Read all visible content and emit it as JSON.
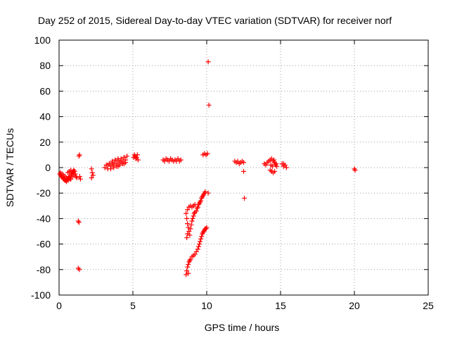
{
  "chart_data": {
    "type": "scatter",
    "title": "Day 252 of 2015, Sidereal Day-to-day VTEC variation (SDTVAR) for receiver norf",
    "xlabel": "GPS time / hours",
    "ylabel": "SDTVAR / TECUs",
    "xlim": [
      0,
      25
    ],
    "ylim": [
      -100,
      100
    ],
    "grid": true,
    "marker": "+",
    "color": "#ff0000",
    "x_ticks": [
      0,
      5,
      10,
      15,
      20,
      25
    ],
    "x_tick_labels": [
      "0",
      "5",
      "10",
      "15",
      "20",
      "25"
    ],
    "y_ticks": [
      -100,
      -80,
      -60,
      -40,
      -20,
      0,
      20,
      40,
      60,
      80,
      100
    ],
    "y_tick_labels": [
      "-100",
      "-80",
      "-60",
      "-40",
      "-20",
      "0",
      "20",
      "40",
      "60",
      "80",
      "100"
    ],
    "series": [
      {
        "name": "SDTVAR",
        "points": [
          [
            0.05,
            -5
          ],
          [
            0.1,
            -6
          ],
          [
            0.15,
            -7
          ],
          [
            0.2,
            -5
          ],
          [
            0.25,
            -8
          ],
          [
            0.3,
            -6
          ],
          [
            0.35,
            -9
          ],
          [
            0.4,
            -7
          ],
          [
            0.45,
            -10
          ],
          [
            0.5,
            -8
          ],
          [
            0.55,
            -9
          ],
          [
            0.6,
            -10
          ],
          [
            0.65,
            -8
          ],
          [
            0.7,
            -7
          ],
          [
            0.75,
            -9
          ],
          [
            0.8,
            -6
          ],
          [
            0.85,
            -5
          ],
          [
            0.9,
            -4
          ],
          [
            0.95,
            -3
          ],
          [
            1.0,
            -2
          ],
          [
            1.05,
            -3
          ],
          [
            1.1,
            -5
          ],
          [
            1.15,
            -7
          ],
          [
            1.2,
            -8
          ],
          [
            0.3,
            -9
          ],
          [
            0.4,
            -10
          ],
          [
            0.5,
            -11
          ],
          [
            0.6,
            -9
          ],
          [
            0.7,
            -8
          ],
          [
            0.8,
            -9
          ],
          [
            0.9,
            -7
          ],
          [
            1.0,
            -6
          ],
          [
            0.2,
            -7
          ],
          [
            0.1,
            -4
          ],
          [
            0.6,
            -4
          ],
          [
            0.7,
            -3
          ],
          [
            0.8,
            -2
          ],
          [
            1.35,
            9
          ],
          [
            1.38,
            10
          ],
          [
            1.4,
            -7
          ],
          [
            1.45,
            -9
          ],
          [
            1.3,
            -42
          ],
          [
            1.35,
            -43
          ],
          [
            1.3,
            -79
          ],
          [
            1.38,
            -80
          ],
          [
            2.2,
            -1
          ],
          [
            2.25,
            -4
          ],
          [
            2.3,
            -6
          ],
          [
            2.2,
            -8
          ],
          [
            3.1,
            0
          ],
          [
            3.2,
            2
          ],
          [
            3.3,
            -1
          ],
          [
            3.4,
            3
          ],
          [
            3.5,
            1
          ],
          [
            3.6,
            4
          ],
          [
            3.7,
            2
          ],
          [
            3.8,
            5
          ],
          [
            3.9,
            3
          ],
          [
            4.0,
            6
          ],
          [
            4.1,
            4
          ],
          [
            4.2,
            7
          ],
          [
            4.3,
            5
          ],
          [
            4.4,
            8
          ],
          [
            4.5,
            6
          ],
          [
            3.5,
            -1
          ],
          [
            3.7,
            0
          ],
          [
            3.9,
            1
          ],
          [
            4.1,
            2
          ],
          [
            4.3,
            3
          ],
          [
            4.5,
            4
          ],
          [
            3.6,
            5
          ],
          [
            3.8,
            6
          ],
          [
            4.0,
            7
          ],
          [
            4.2,
            5
          ],
          [
            4.4,
            3
          ],
          [
            4.6,
            9
          ],
          [
            3.3,
            2
          ],
          [
            3.6,
            3
          ],
          [
            4.0,
            1
          ],
          [
            5.05,
            8
          ],
          [
            5.1,
            10
          ],
          [
            5.15,
            9
          ],
          [
            5.2,
            7
          ],
          [
            5.25,
            8
          ],
          [
            5.3,
            10
          ],
          [
            5.35,
            6
          ],
          [
            7.05,
            6
          ],
          [
            7.15,
            5
          ],
          [
            7.25,
            7
          ],
          [
            7.35,
            6
          ],
          [
            7.45,
            5
          ],
          [
            7.55,
            7
          ],
          [
            7.65,
            6
          ],
          [
            7.75,
            5
          ],
          [
            7.85,
            6
          ],
          [
            7.95,
            5
          ],
          [
            8.05,
            7
          ],
          [
            8.15,
            5
          ],
          [
            8.25,
            6
          ],
          [
            9.75,
            10
          ],
          [
            9.85,
            11
          ],
          [
            9.95,
            10
          ],
          [
            10.05,
            11
          ],
          [
            10.1,
            -20
          ],
          [
            10.1,
            83
          ],
          [
            10.15,
            49
          ],
          [
            8.6,
            -36
          ],
          [
            8.65,
            -40
          ],
          [
            8.7,
            -44
          ],
          [
            8.75,
            -47
          ],
          [
            8.8,
            -50
          ],
          [
            8.85,
            -53
          ],
          [
            8.9,
            -48
          ],
          [
            8.95,
            -45
          ],
          [
            9.0,
            -42
          ],
          [
            9.05,
            -40
          ],
          [
            9.1,
            -38
          ],
          [
            9.15,
            -36
          ],
          [
            9.2,
            -35
          ],
          [
            9.3,
            -34
          ],
          [
            9.35,
            -32
          ],
          [
            9.4,
            -31
          ],
          [
            9.45,
            -29
          ],
          [
            9.5,
            -28
          ],
          [
            9.55,
            -27
          ],
          [
            9.6,
            -26
          ],
          [
            9.65,
            -24
          ],
          [
            9.7,
            -23
          ],
          [
            9.75,
            -22
          ],
          [
            9.8,
            -21
          ],
          [
            9.85,
            -20
          ],
          [
            9.9,
            -19
          ],
          [
            8.7,
            -33
          ],
          [
            8.8,
            -31
          ],
          [
            8.9,
            -30
          ],
          [
            9.0,
            -31
          ],
          [
            9.1,
            -30
          ],
          [
            9.2,
            -29
          ],
          [
            8.65,
            -55
          ],
          [
            8.7,
            -52
          ],
          [
            8.6,
            -84
          ],
          [
            8.65,
            -81
          ],
          [
            8.7,
            -78
          ],
          [
            8.75,
            -76
          ],
          [
            8.8,
            -74
          ],
          [
            8.9,
            -72
          ],
          [
            9.0,
            -70
          ],
          [
            9.1,
            -69
          ],
          [
            9.2,
            -68
          ],
          [
            9.3,
            -66
          ],
          [
            9.4,
            -64
          ],
          [
            9.45,
            -62
          ],
          [
            9.5,
            -60
          ],
          [
            9.55,
            -58
          ],
          [
            9.6,
            -56
          ],
          [
            9.65,
            -54
          ],
          [
            9.7,
            -52
          ],
          [
            9.75,
            -51
          ],
          [
            9.8,
            -50
          ],
          [
            9.85,
            -49
          ],
          [
            9.9,
            -48
          ],
          [
            9.95,
            -48
          ],
          [
            10.0,
            -47
          ],
          [
            8.75,
            -83
          ],
          [
            8.85,
            -73
          ],
          [
            11.9,
            5
          ],
          [
            12.0,
            4
          ],
          [
            12.1,
            5
          ],
          [
            12.2,
            3
          ],
          [
            12.3,
            4
          ],
          [
            12.4,
            5
          ],
          [
            12.5,
            4
          ],
          [
            12.5,
            -3
          ],
          [
            12.55,
            -24
          ],
          [
            13.9,
            3
          ],
          [
            14.0,
            2
          ],
          [
            14.1,
            4
          ],
          [
            14.2,
            5
          ],
          [
            14.3,
            6
          ],
          [
            14.4,
            7
          ],
          [
            14.5,
            5
          ],
          [
            14.6,
            4
          ],
          [
            14.7,
            3
          ],
          [
            14.3,
            -2
          ],
          [
            14.4,
            -3
          ],
          [
            14.5,
            -4
          ],
          [
            14.6,
            -3
          ],
          [
            14.35,
            2
          ],
          [
            14.45,
            1
          ],
          [
            14.55,
            6
          ],
          [
            14.65,
            2
          ],
          [
            14.75,
            1
          ],
          [
            15.1,
            3
          ],
          [
            15.2,
            1
          ],
          [
            15.3,
            2
          ],
          [
            15.4,
            0
          ],
          [
            15.2,
            3
          ],
          [
            20.0,
            -1
          ],
          [
            20.05,
            -2
          ]
        ]
      }
    ]
  }
}
